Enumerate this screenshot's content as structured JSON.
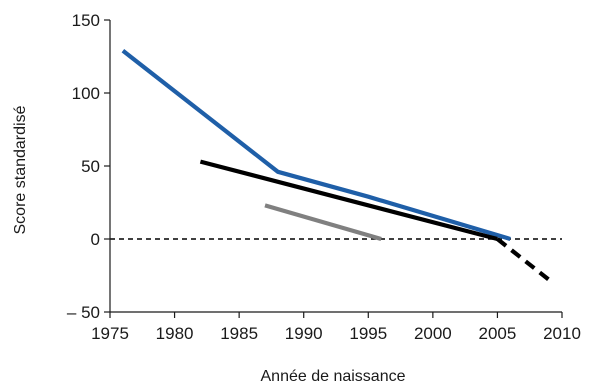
{
  "chart_data": {
    "type": "line",
    "title": "",
    "xlabel": "Année de naissance",
    "ylabel": "Score standardisé",
    "xlim": [
      1975,
      2010
    ],
    "ylim": [
      -50,
      150
    ],
    "xticks": [
      1975,
      1980,
      1985,
      1990,
      1995,
      2000,
      2005,
      2010
    ],
    "xtick_labels": [
      "1975",
      "1980",
      "1985",
      "1990",
      "1995",
      "2000",
      "2005",
      "2010"
    ],
    "yticks": [
      -50,
      0,
      50,
      100,
      150
    ],
    "ytick_labels": [
      "– 50",
      "0",
      "50",
      "100",
      "150"
    ],
    "grid": false,
    "reference_line": {
      "y": 0,
      "style": "dashed",
      "color": "#000000"
    },
    "series": [
      {
        "color": "#1f5fa8",
        "style": "solid",
        "x": [
          1976,
          1988,
          1995,
          2006
        ],
        "y": [
          129,
          46,
          29,
          0
        ]
      },
      {
        "color": "#000000",
        "style": "solid",
        "x": [
          1982,
          2005
        ],
        "y": [
          53,
          0
        ]
      },
      {
        "color": "#000000",
        "style": "dashed",
        "x": [
          2005,
          2009
        ],
        "y": [
          0,
          -28
        ]
      },
      {
        "color": "#808080",
        "style": "solid",
        "x": [
          1987,
          1996
        ],
        "y": [
          23,
          0
        ]
      }
    ]
  }
}
